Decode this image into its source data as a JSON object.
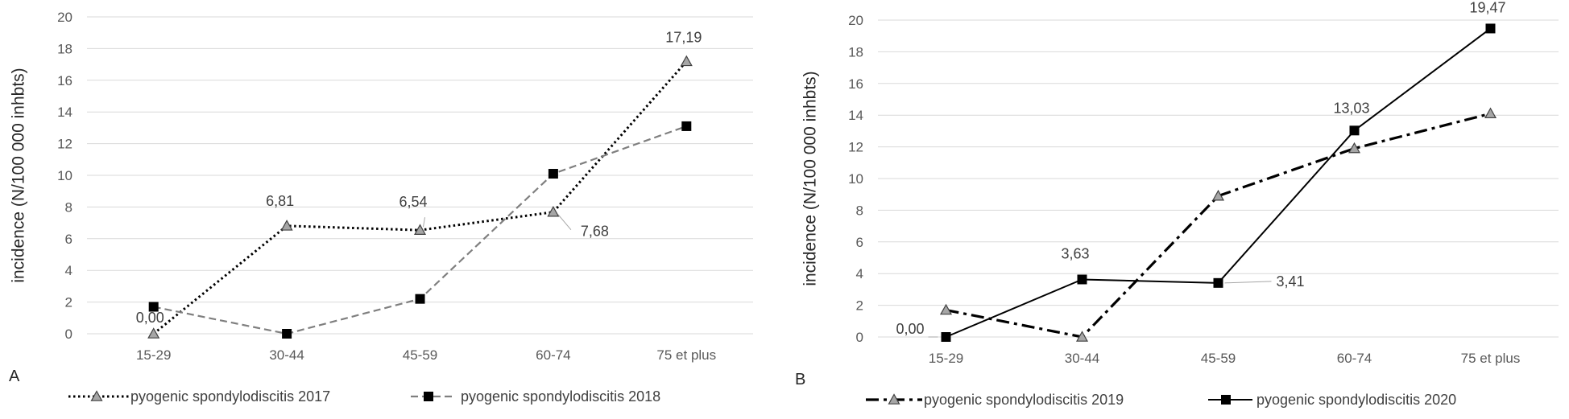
{
  "chart_data": [
    {
      "panel_label": "A",
      "type": "line",
      "ylabel": "incidence (N/100 000 inhbts)",
      "xlabel": "",
      "categories": [
        "15-29",
        "30-44",
        "45-59",
        "60-74",
        "75 et plus"
      ],
      "ylim": [
        0,
        20
      ],
      "yticks": [
        0,
        2,
        4,
        6,
        8,
        10,
        12,
        14,
        16,
        18,
        20
      ],
      "grid": true,
      "legend_position": "bottom",
      "series": [
        {
          "name": "pyogenic spondylodiscitis  2017",
          "values": [
            0.0,
            6.81,
            6.54,
            7.68,
            17.19
          ],
          "style": "dotted",
          "color": "#000000",
          "marker": "triangle"
        },
        {
          "name": "pyogenic spondylodiscitis  2018",
          "values": [
            1.7,
            0.0,
            2.2,
            10.1,
            13.1
          ],
          "style": "dashed",
          "color": "#7f7f7f",
          "marker": "square"
        }
      ],
      "data_labels": [
        {
          "text": "0,00",
          "category": "15-29",
          "value": 0.0
        },
        {
          "text": "6,81",
          "category": "30-44",
          "value": 6.81
        },
        {
          "text": "6,54",
          "category": "45-59",
          "value": 6.54
        },
        {
          "text": "7,68",
          "category": "60-74",
          "value": 7.68
        },
        {
          "text": "17,19",
          "category": "75 et plus",
          "value": 17.19
        }
      ]
    },
    {
      "panel_label": "B",
      "type": "line",
      "ylabel": "incidence (N/100 000 inhbts)",
      "xlabel": "",
      "categories": [
        "15-29",
        "30-44",
        "45-59",
        "60-74",
        "75 et plus"
      ],
      "ylim": [
        0,
        20
      ],
      "yticks": [
        0,
        2,
        4,
        6,
        8,
        10,
        12,
        14,
        16,
        18,
        20
      ],
      "grid": true,
      "legend_position": "bottom",
      "series": [
        {
          "name": "pyogenic spondylodiscitis  2019",
          "values": [
            1.7,
            0.0,
            8.9,
            11.9,
            14.1
          ],
          "style": "dashdot",
          "color": "#000000",
          "marker": "triangle"
        },
        {
          "name": "pyogenic spondylodiscitis 2020",
          "values": [
            0.0,
            3.63,
            3.41,
            13.03,
            19.47
          ],
          "style": "solid",
          "color": "#000000",
          "marker": "square"
        }
      ],
      "data_labels": [
        {
          "text": "0,00",
          "category": "15-29",
          "value": 0.0
        },
        {
          "text": "3,63",
          "category": "30-44",
          "value": 3.63
        },
        {
          "text": "3,41",
          "category": "45-59",
          "value": 3.41
        },
        {
          "text": "13,03",
          "category": "60-74",
          "value": 13.03
        },
        {
          "text": "19,47",
          "category": "75 et plus",
          "value": 19.47
        }
      ]
    }
  ]
}
